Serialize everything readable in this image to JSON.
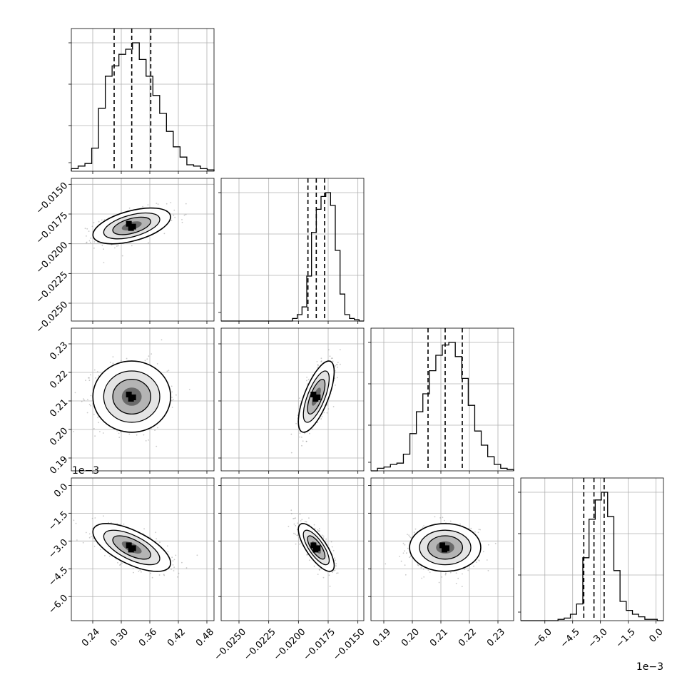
{
  "chart_data": {
    "type": "corner",
    "variables": [
      {
        "ticks": [
          0.24,
          0.3,
          0.36,
          0.42,
          0.48
        ],
        "tick_labels": [
          "0.24",
          "0.30",
          "0.36",
          "0.42",
          "0.48"
        ],
        "range": [
          0.195,
          0.495
        ],
        "quantiles": [
          0.285,
          0.322,
          0.362
        ],
        "median": 0.322,
        "sigma": 0.038,
        "hist": [
          0.02,
          0.04,
          0.06,
          0.18,
          0.49,
          0.74,
          0.82,
          0.91,
          0.95,
          1.0,
          0.87,
          0.74,
          0.59,
          0.45,
          0.31,
          0.19,
          0.11,
          0.05,
          0.04,
          0.02,
          0.01
        ]
      },
      {
        "ticks": [
          -0.025,
          -0.0225,
          -0.02,
          -0.0175,
          -0.015
        ],
        "tick_labels": [
          "−0.0250",
          "−0.0225",
          "−0.0200",
          "−0.0175",
          "−0.0150"
        ],
        "range": [
          -0.0265,
          -0.0145
        ],
        "quantiles": [
          -0.0192,
          -0.0185,
          -0.0178
        ],
        "median": -0.0185,
        "sigma": 0.0007,
        "hist": [
          0.0,
          0.0,
          0.0,
          0.0,
          0.0,
          0.0,
          0.0,
          0.0,
          0.0,
          0.0,
          0.0,
          0.0,
          0.0,
          0.0,
          0.0,
          0.02,
          0.05,
          0.11,
          0.35,
          0.69,
          0.87,
          0.97,
          1.0,
          0.9,
          0.55,
          0.21,
          0.05,
          0.02,
          0.01,
          0.0
        ]
      },
      {
        "ticks": [
          0.19,
          0.2,
          0.21,
          0.22,
          0.23
        ],
        "tick_labels": [
          "0.19",
          "0.20",
          "0.21",
          "0.22",
          "0.23"
        ],
        "range": [
          0.1855,
          0.2355
        ],
        "quantiles": [
          0.2055,
          0.2115,
          0.2175
        ],
        "median": 0.2115,
        "sigma": 0.0058,
        "hist": [
          0.0,
          0.02,
          0.03,
          0.05,
          0.06,
          0.13,
          0.29,
          0.46,
          0.6,
          0.78,
          0.9,
          0.98,
          1.0,
          0.89,
          0.72,
          0.51,
          0.31,
          0.2,
          0.11,
          0.05,
          0.02,
          0.01
        ]
      },
      {
        "ticks": [
          -0.006,
          -0.0045,
          -0.003,
          -0.0015,
          0.0
        ],
        "tick_labels": [
          "−6.0",
          "−4.5",
          "−3.0",
          "−1.5",
          "0.0"
        ],
        "range": [
          -0.0073,
          0.0004
        ],
        "quantiles": [
          -0.0039,
          -0.00335,
          -0.0028
        ],
        "median": -0.00335,
        "sigma": 0.0006,
        "hist": [
          0.0,
          0.0,
          0.0,
          0.0,
          0.0,
          0.0,
          0.01,
          0.02,
          0.05,
          0.13,
          0.49,
          0.79,
          0.94,
          1.0,
          0.81,
          0.39,
          0.15,
          0.08,
          0.05,
          0.03,
          0.01,
          0.01,
          0.0
        ]
      }
    ],
    "pair_params": {
      "1,0": {
        "rho": 0.5
      },
      "2,0": {
        "rho": 0.0
      },
      "2,1": {
        "rho": 0.7
      },
      "3,0": {
        "rho": -0.65
      },
      "3,1": {
        "rho": -0.75
      },
      "3,2": {
        "rho": 0.0
      }
    },
    "multiplier_labels": {
      "row3_y": "1e−3",
      "col3_x": "1e−3"
    },
    "grid": true,
    "colors": {
      "line": "#000000",
      "grid": "#b0b0b0",
      "scatter": "#888888",
      "dense": "#000000"
    }
  }
}
